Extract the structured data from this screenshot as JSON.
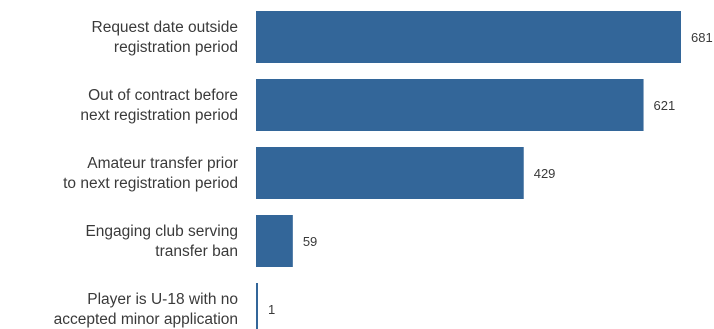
{
  "chart_data": {
    "type": "bar",
    "orientation": "horizontal",
    "categories": [
      [
        "Request date outside",
        "registration period"
      ],
      [
        "Out of contract before",
        "next registration period"
      ],
      [
        "Amateur transfer prior",
        "to next registration period"
      ],
      [
        "Engaging club serving",
        "transfer ban"
      ],
      [
        "Player is U-18 with no",
        "accepted minor application"
      ]
    ],
    "values": [
      681,
      621,
      429,
      59,
      1
    ],
    "value_labels": [
      "681",
      "621",
      "429",
      "59",
      "1"
    ],
    "xlim": [
      0,
      681
    ],
    "grid": false,
    "legend": "none",
    "bar_color": "#336699"
  }
}
